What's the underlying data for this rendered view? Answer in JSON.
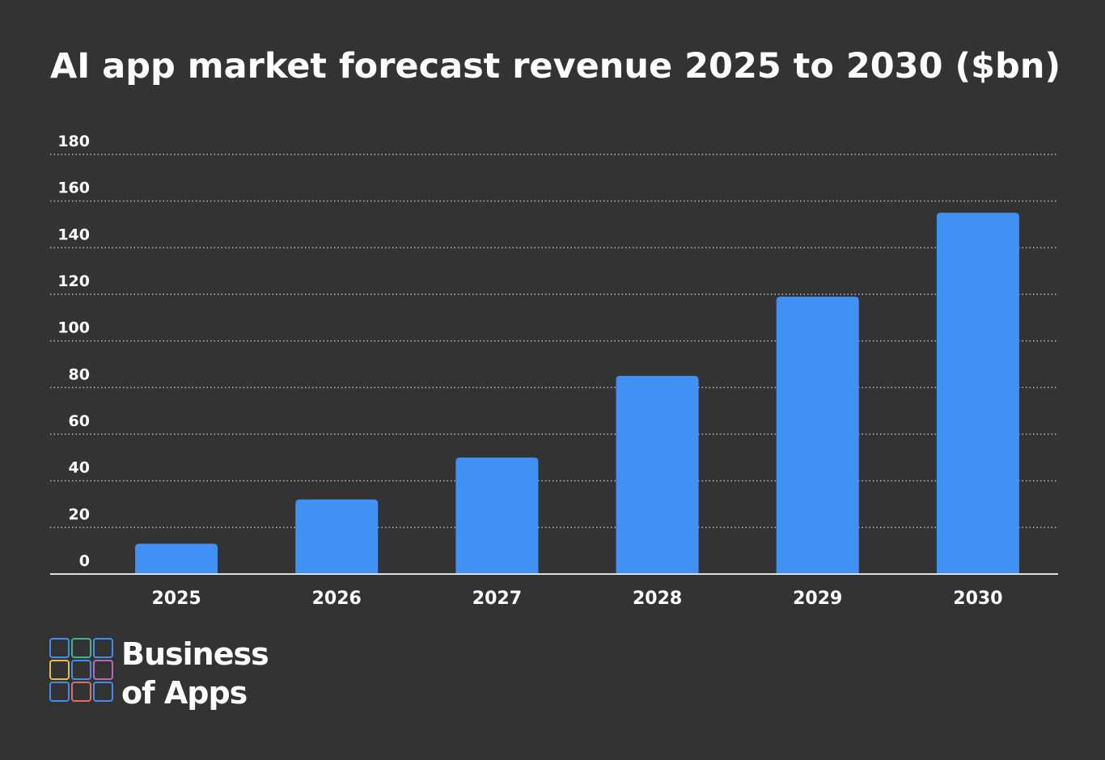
{
  "chart_data": {
    "type": "bar",
    "title": "AI app market forecast revenue 2025 to 2030 ($bn)",
    "categories": [
      "2025",
      "2026",
      "2027",
      "2028",
      "2029",
      "2030"
    ],
    "values": [
      13,
      32,
      50,
      85,
      119,
      155
    ],
    "color": "#4191f5",
    "ylim": [
      0,
      180
    ],
    "yticks": [
      0,
      20,
      40,
      60,
      80,
      100,
      120,
      140,
      160,
      180
    ],
    "grid": true
  },
  "brand": [
    "Business",
    "of Apps"
  ]
}
